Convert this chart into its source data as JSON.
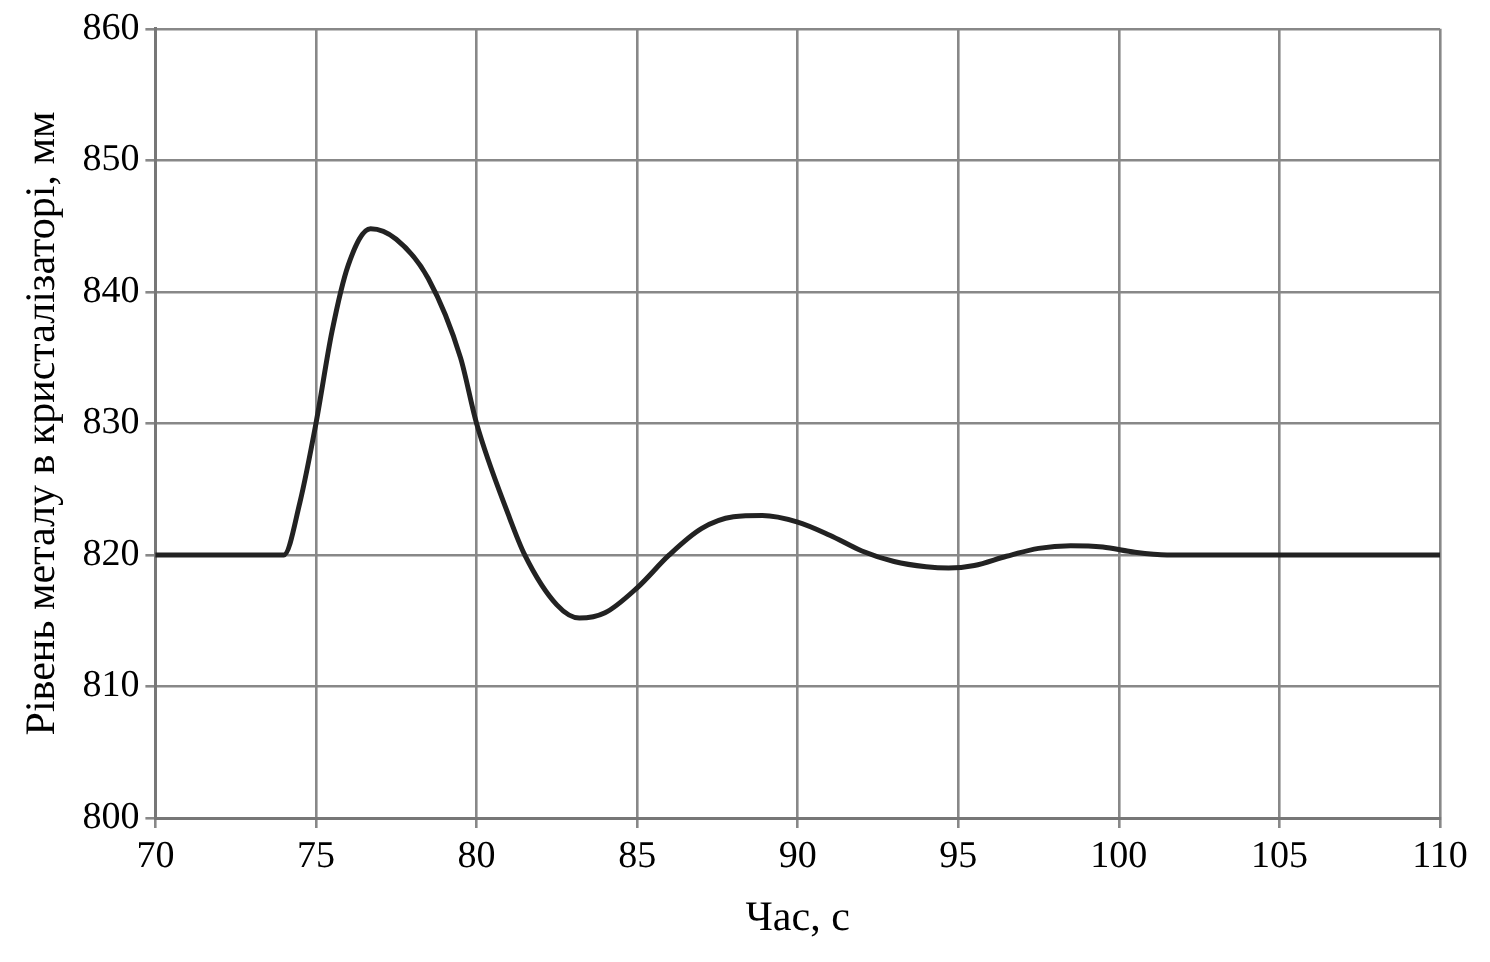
{
  "chart_data": {
    "type": "line",
    "xlabel": "Час, с",
    "ylabel": "Рівень металу в кристалізаторі, мм",
    "x": [
      70,
      74,
      74.5,
      75,
      75.5,
      76,
      76.7,
      77.5,
      78.5,
      79.5,
      80,
      81,
      81.5,
      82.5,
      83.2,
      84,
      85,
      86,
      87,
      88,
      88.9,
      90,
      91,
      92,
      93,
      94,
      94.7,
      95.5,
      96.5,
      97.5,
      98.5,
      99.5,
      100.5,
      101.5,
      105,
      110
    ],
    "series": [
      {
        "color": "#222222",
        "values": [
          820,
          820,
          824,
          830,
          837,
          842,
          844.8,
          844,
          841,
          835,
          830,
          823,
          820,
          816.2,
          815.2,
          815.6,
          817.5,
          820,
          822,
          822.9,
          823,
          822.5,
          821.5,
          820.3,
          819.5,
          819.1,
          819,
          819.2,
          819.9,
          820.5,
          820.7,
          820.6,
          820.2,
          820,
          820,
          820
        ]
      }
    ],
    "xlim": [
      70,
      110
    ],
    "xticks": [
      70,
      75,
      80,
      85,
      90,
      95,
      100,
      105,
      110
    ],
    "ylim": [
      800,
      860
    ],
    "yticks": [
      800,
      810,
      820,
      830,
      840,
      850,
      860
    ],
    "grid": true,
    "legend": false,
    "marker": "none",
    "line_style": "solid"
  }
}
